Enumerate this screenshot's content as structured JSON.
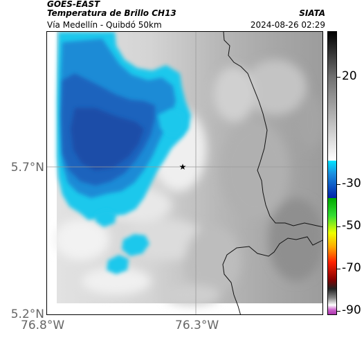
{
  "header": {
    "satellite": "GOES-EAST",
    "product": "Temperatura de Brillo CH13",
    "route": "Vía Medellín - Quibdó 50km",
    "organization": "SIATA",
    "datetime": "2024-08-26 02:29"
  },
  "map": {
    "latitude_labels": [
      "5.7°N",
      "5.2°N"
    ],
    "longitude_labels": [
      "76.8°W",
      "76.3°W"
    ],
    "marker_icon": "star-icon"
  },
  "colorbar": {
    "tick_labels": [
      "20",
      "-30",
      "-50",
      "-70",
      "-90"
    ],
    "colors": {
      "warm": "#ffffff",
      "mid": "#808080",
      "cold_top": "#000000",
      "cyan": "#00e5ff",
      "blue": "#0033aa",
      "green": "#00cc00",
      "yellow": "#ffff00",
      "red": "#ff0000",
      "purple": "#cc55cc"
    }
  },
  "colors": {
    "cloud_cyan": "#1ec8ec",
    "cloud_blue_light": "#1f8bd6",
    "cloud_blue": "#1c63bd",
    "cloud_blue_dark": "#1a4ea8",
    "boundary": "#111111"
  }
}
